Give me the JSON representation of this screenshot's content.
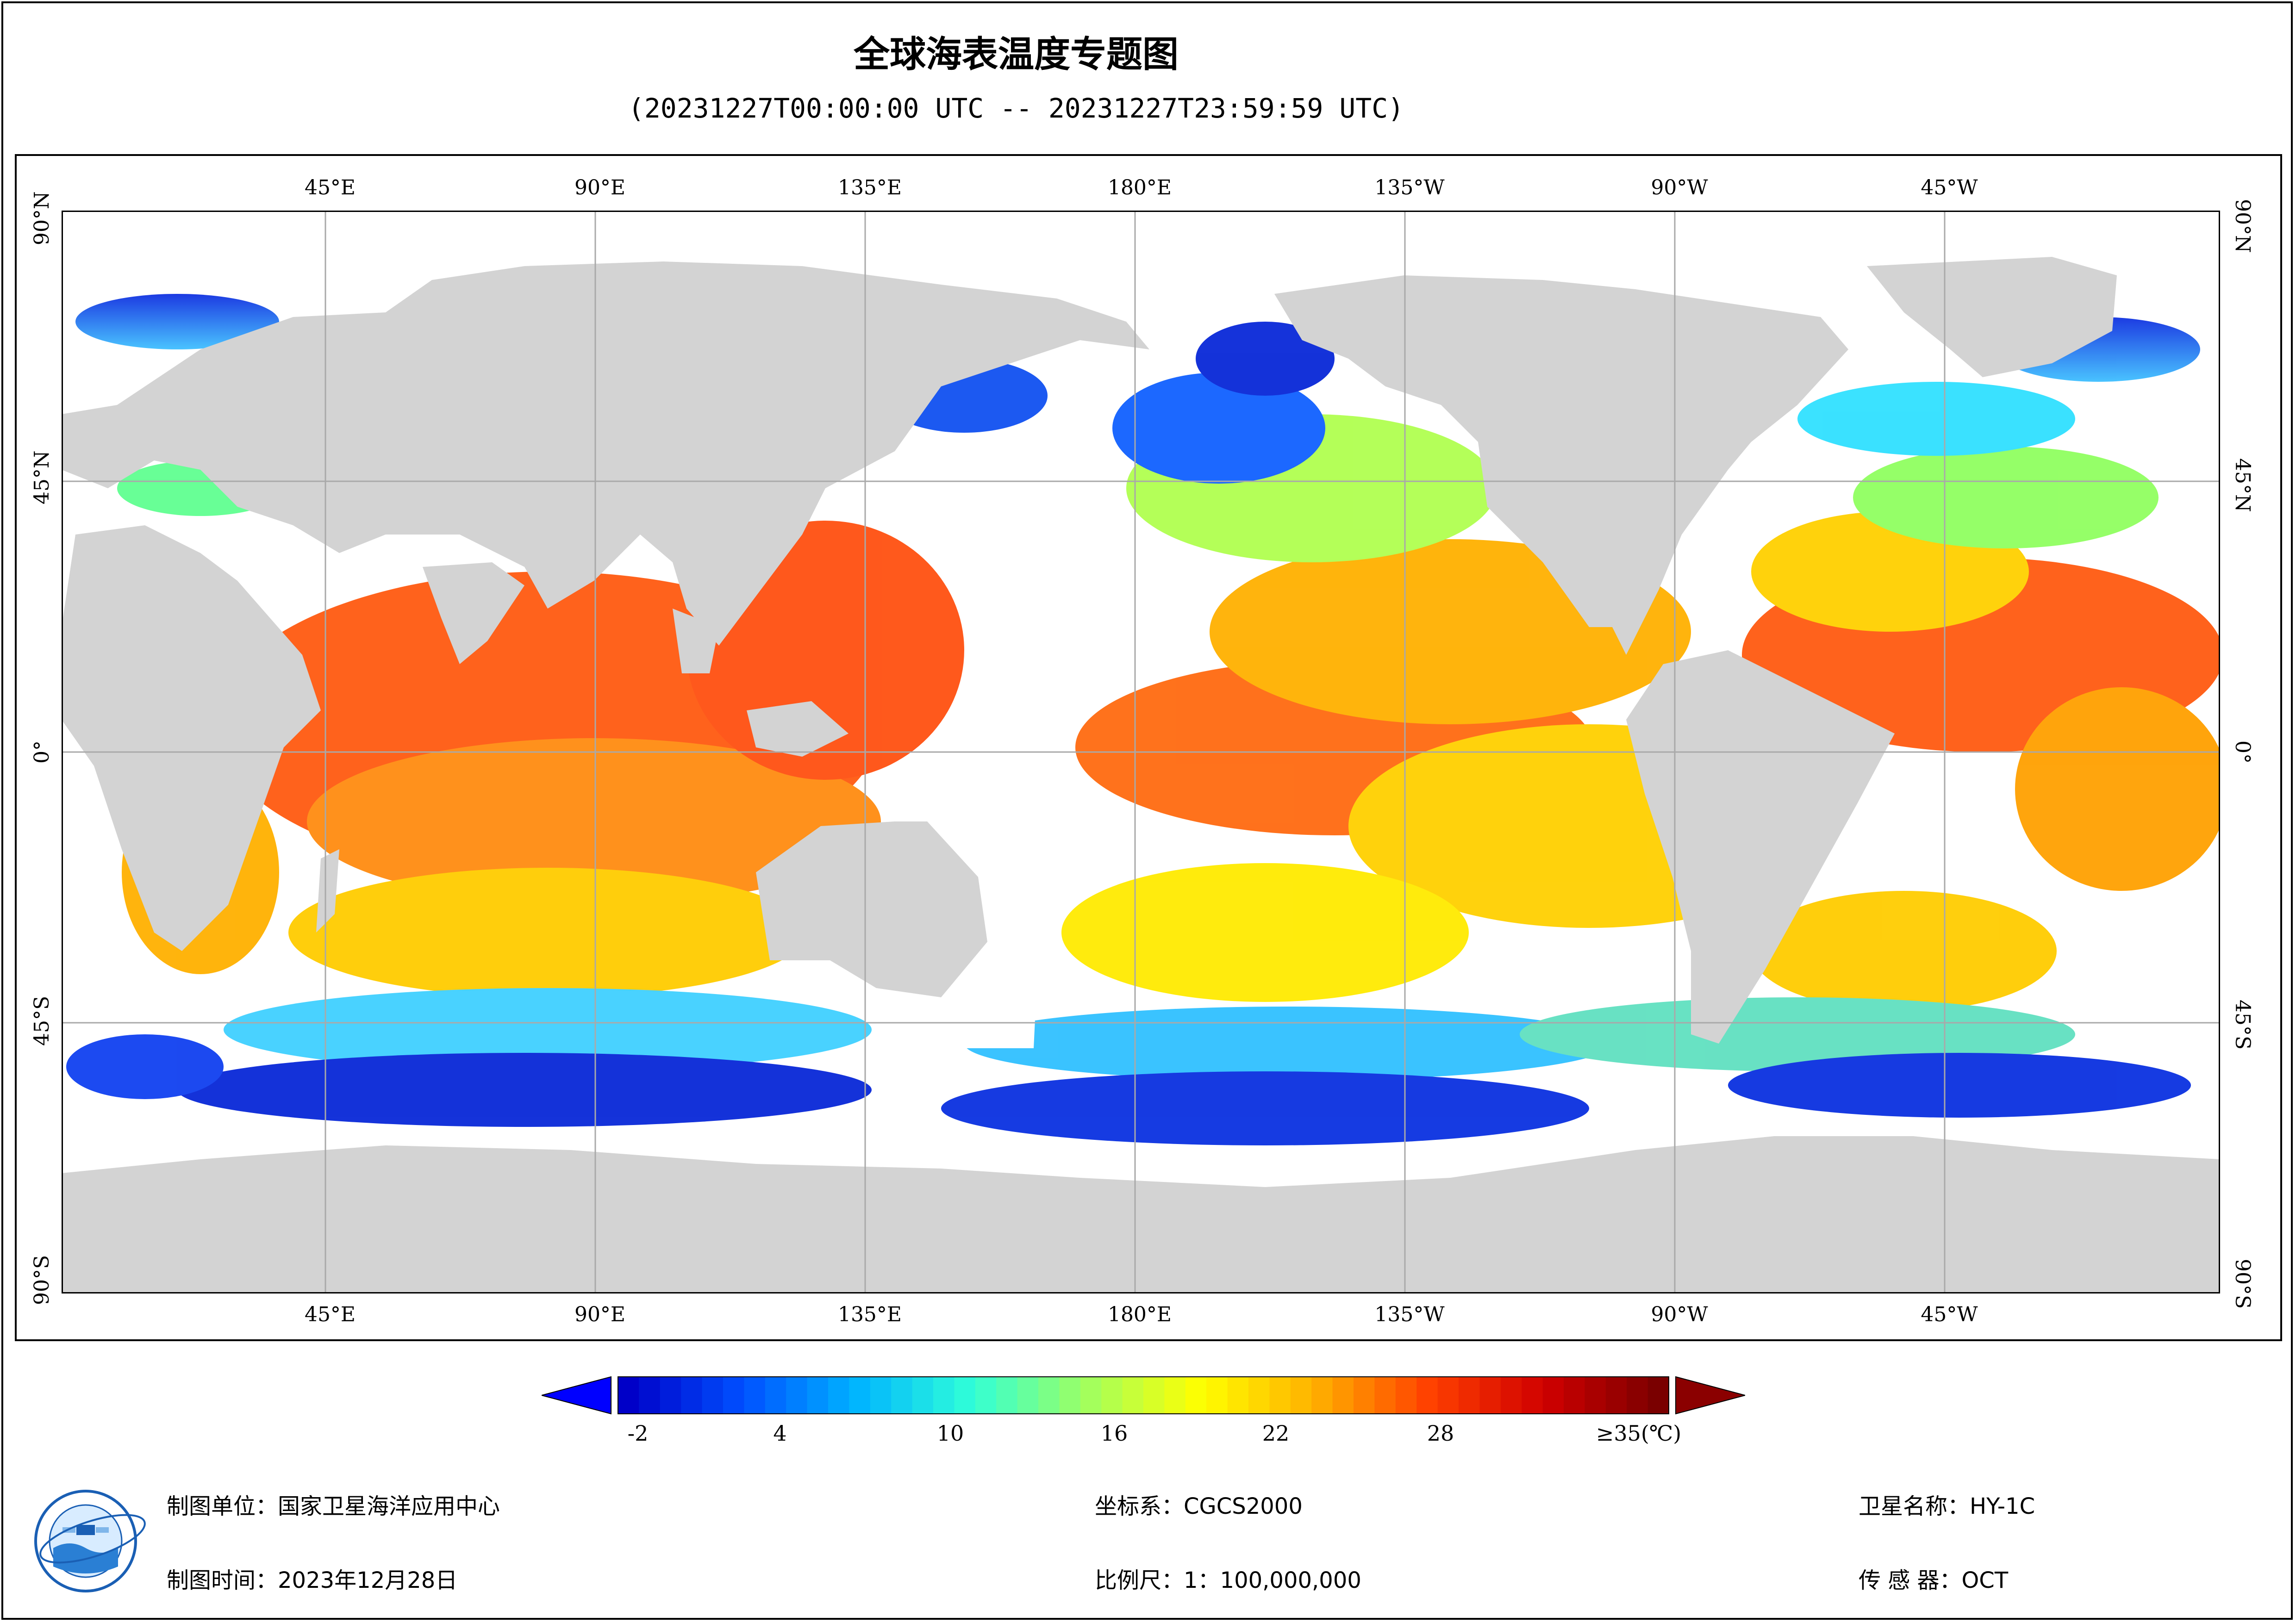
{
  "header": {
    "title": "全球海表温度专题图",
    "time_range": "(20231227T00:00:00 UTC -- 20231227T23:59:59 UTC)"
  },
  "map": {
    "lon_labels": [
      "45°E",
      "90°E",
      "135°E",
      "180°E",
      "135°W",
      "90°W",
      "45°W"
    ],
    "lat_labels": [
      "90°N",
      "45°N",
      "0°",
      "45°S",
      "90°S"
    ],
    "colors": {
      "land": "#d3d3d3",
      "cloud": "#ffffff",
      "grid": "#a9a9a9"
    }
  },
  "colorbar": {
    "tick_labels": [
      "-2",
      "4",
      "10",
      "16",
      "22",
      "28",
      "≥35(℃)"
    ],
    "tick_values": [
      -2,
      4,
      10,
      16,
      22,
      28,
      35
    ],
    "range": [
      -2,
      35
    ],
    "colors": [
      "#0000c8",
      "#0050ff",
      "#00b4ff",
      "#30ffd8",
      "#a0ff60",
      "#ffff00",
      "#ffb000",
      "#ff4000",
      "#d00000",
      "#7a0000"
    ]
  },
  "footer": {
    "unit": "制图单位：国家卫星海洋应用中心",
    "date": "制图时间：2023年12月28日",
    "crs": "坐标系：CGCS2000",
    "scale": "比例尺：1：100,000,000",
    "satellite": "卫星名称：HY-1C",
    "sensor": "传 感 器：OCT"
  }
}
